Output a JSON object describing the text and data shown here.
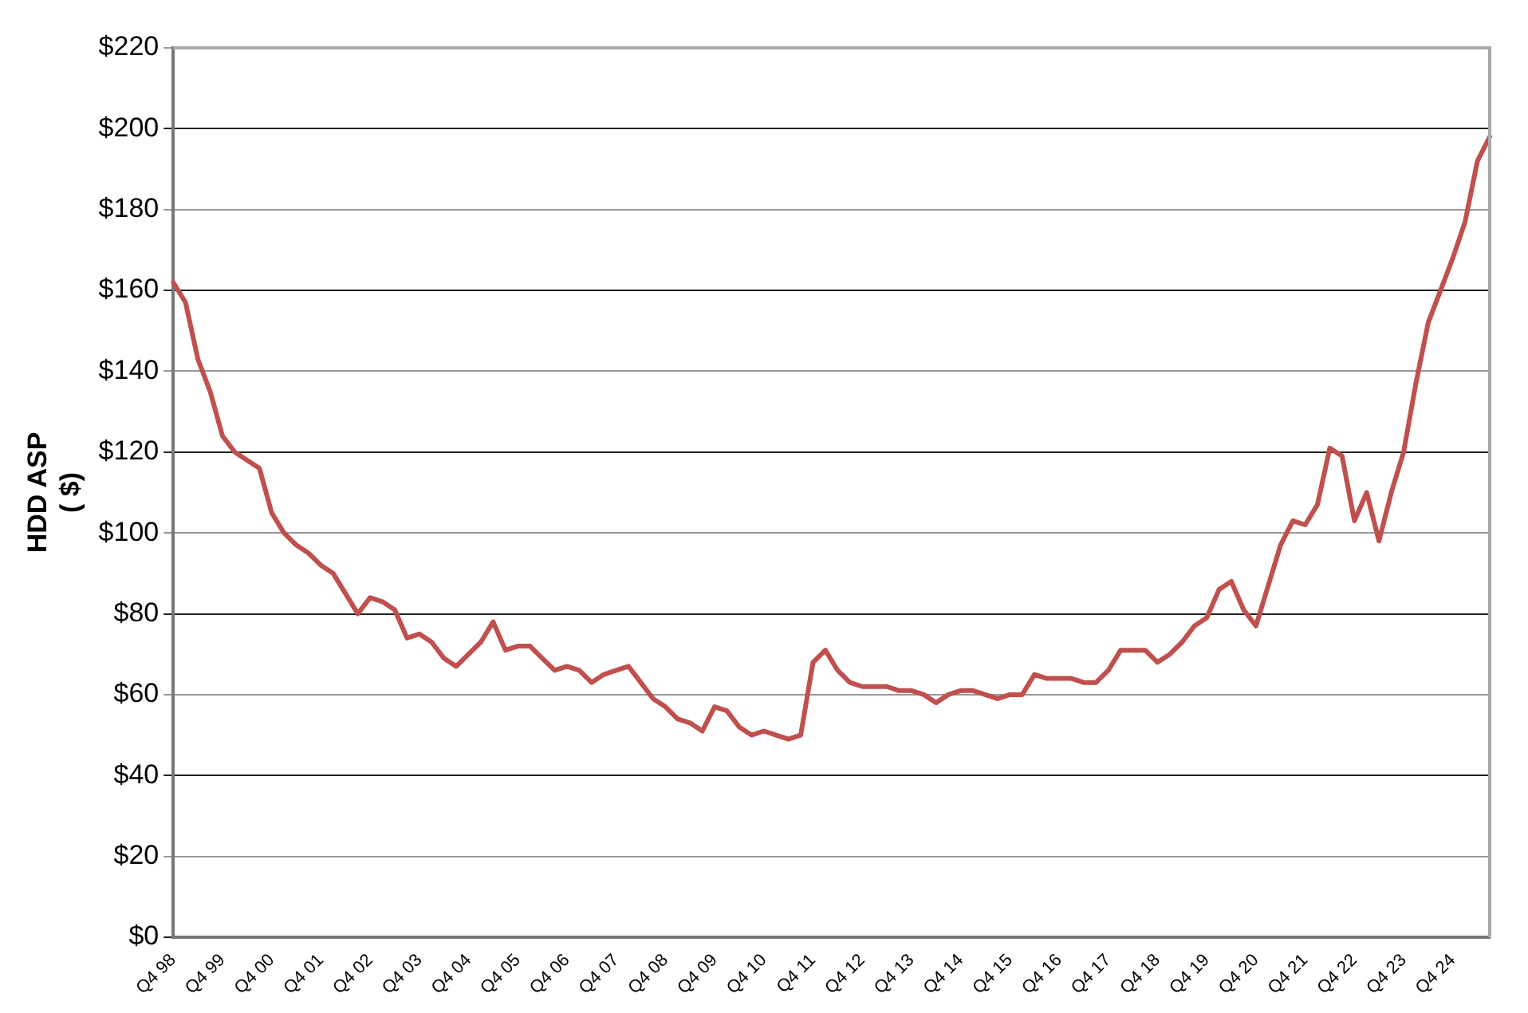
{
  "chart_data": {
    "type": "line",
    "ylabel": "HDD ASP\n( $)",
    "categories": [
      "Q4 98",
      null,
      null,
      null,
      "Q4 99",
      null,
      null,
      null,
      "Q4 00",
      null,
      null,
      null,
      "Q4 01",
      null,
      null,
      null,
      "Q4 02",
      null,
      null,
      null,
      "Q4 03",
      null,
      null,
      null,
      "Q4 04",
      null,
      null,
      null,
      "Q4 05",
      null,
      null,
      null,
      "Q4 06",
      null,
      null,
      null,
      "Q4 07",
      null,
      null,
      null,
      "Q4 08",
      null,
      null,
      null,
      "Q4 09",
      null,
      null,
      null,
      "Q4 10",
      null,
      null,
      null,
      "Q4 11",
      null,
      null,
      null,
      "Q4 12",
      null,
      null,
      null,
      "Q4 13",
      null,
      null,
      null,
      "Q4 14",
      null,
      null,
      null,
      "Q4 15",
      null,
      null,
      null,
      "Q4 16",
      null,
      null,
      null,
      "Q4 17",
      null,
      null,
      null,
      "Q4 18",
      null,
      null,
      null,
      "Q4 19",
      null,
      null,
      null,
      "Q4 20",
      null,
      null,
      null,
      "Q4 21",
      null,
      null,
      null,
      "Q4 22",
      null,
      null,
      null,
      "Q4 23",
      null,
      null,
      null,
      "Q4 24",
      null,
      null,
      null
    ],
    "series": [
      {
        "color": "#c0504d",
        "values": [
          162,
          157,
          143,
          135,
          124,
          120,
          118,
          116,
          105,
          100,
          97,
          95,
          92,
          90,
          85,
          80,
          84,
          83,
          81,
          74,
          75,
          73,
          69,
          67,
          70,
          73,
          78,
          71,
          72,
          72,
          69,
          66,
          67,
          66,
          63,
          65,
          66,
          67,
          63,
          59,
          57,
          54,
          53,
          51,
          57,
          56,
          52,
          50,
          51,
          50,
          49,
          50,
          68,
          71,
          66,
          63,
          62,
          62,
          62,
          61,
          61,
          60,
          58,
          60,
          61,
          61,
          60,
          59,
          60,
          60,
          65,
          64,
          64,
          64,
          63,
          63,
          66,
          71,
          71,
          71,
          68,
          70,
          73,
          77,
          79,
          86,
          88,
          81,
          77,
          87,
          97,
          103,
          102,
          107,
          121,
          119,
          103,
          110,
          98,
          110,
          120,
          137,
          152,
          160,
          168,
          177,
          192,
          198
        ]
      }
    ],
    "ylim": [
      0,
      220
    ],
    "yticks": [
      {
        "value": 0,
        "label": "$0"
      },
      {
        "value": 20,
        "label": "$20"
      },
      {
        "value": 40,
        "label": "$40"
      },
      {
        "value": 60,
        "label": "$60"
      },
      {
        "value": 80,
        "label": "$80"
      },
      {
        "value": 100,
        "label": "$100"
      },
      {
        "value": 120,
        "label": "$120"
      },
      {
        "value": 140,
        "label": "$140"
      },
      {
        "value": 160,
        "label": "$160"
      },
      {
        "value": 180,
        "label": "$180"
      },
      {
        "value": 200,
        "label": "$200"
      },
      {
        "value": 220,
        "label": "$220"
      }
    ],
    "grid": "y",
    "legend": false,
    "marker": "none",
    "line_style": "solid"
  }
}
